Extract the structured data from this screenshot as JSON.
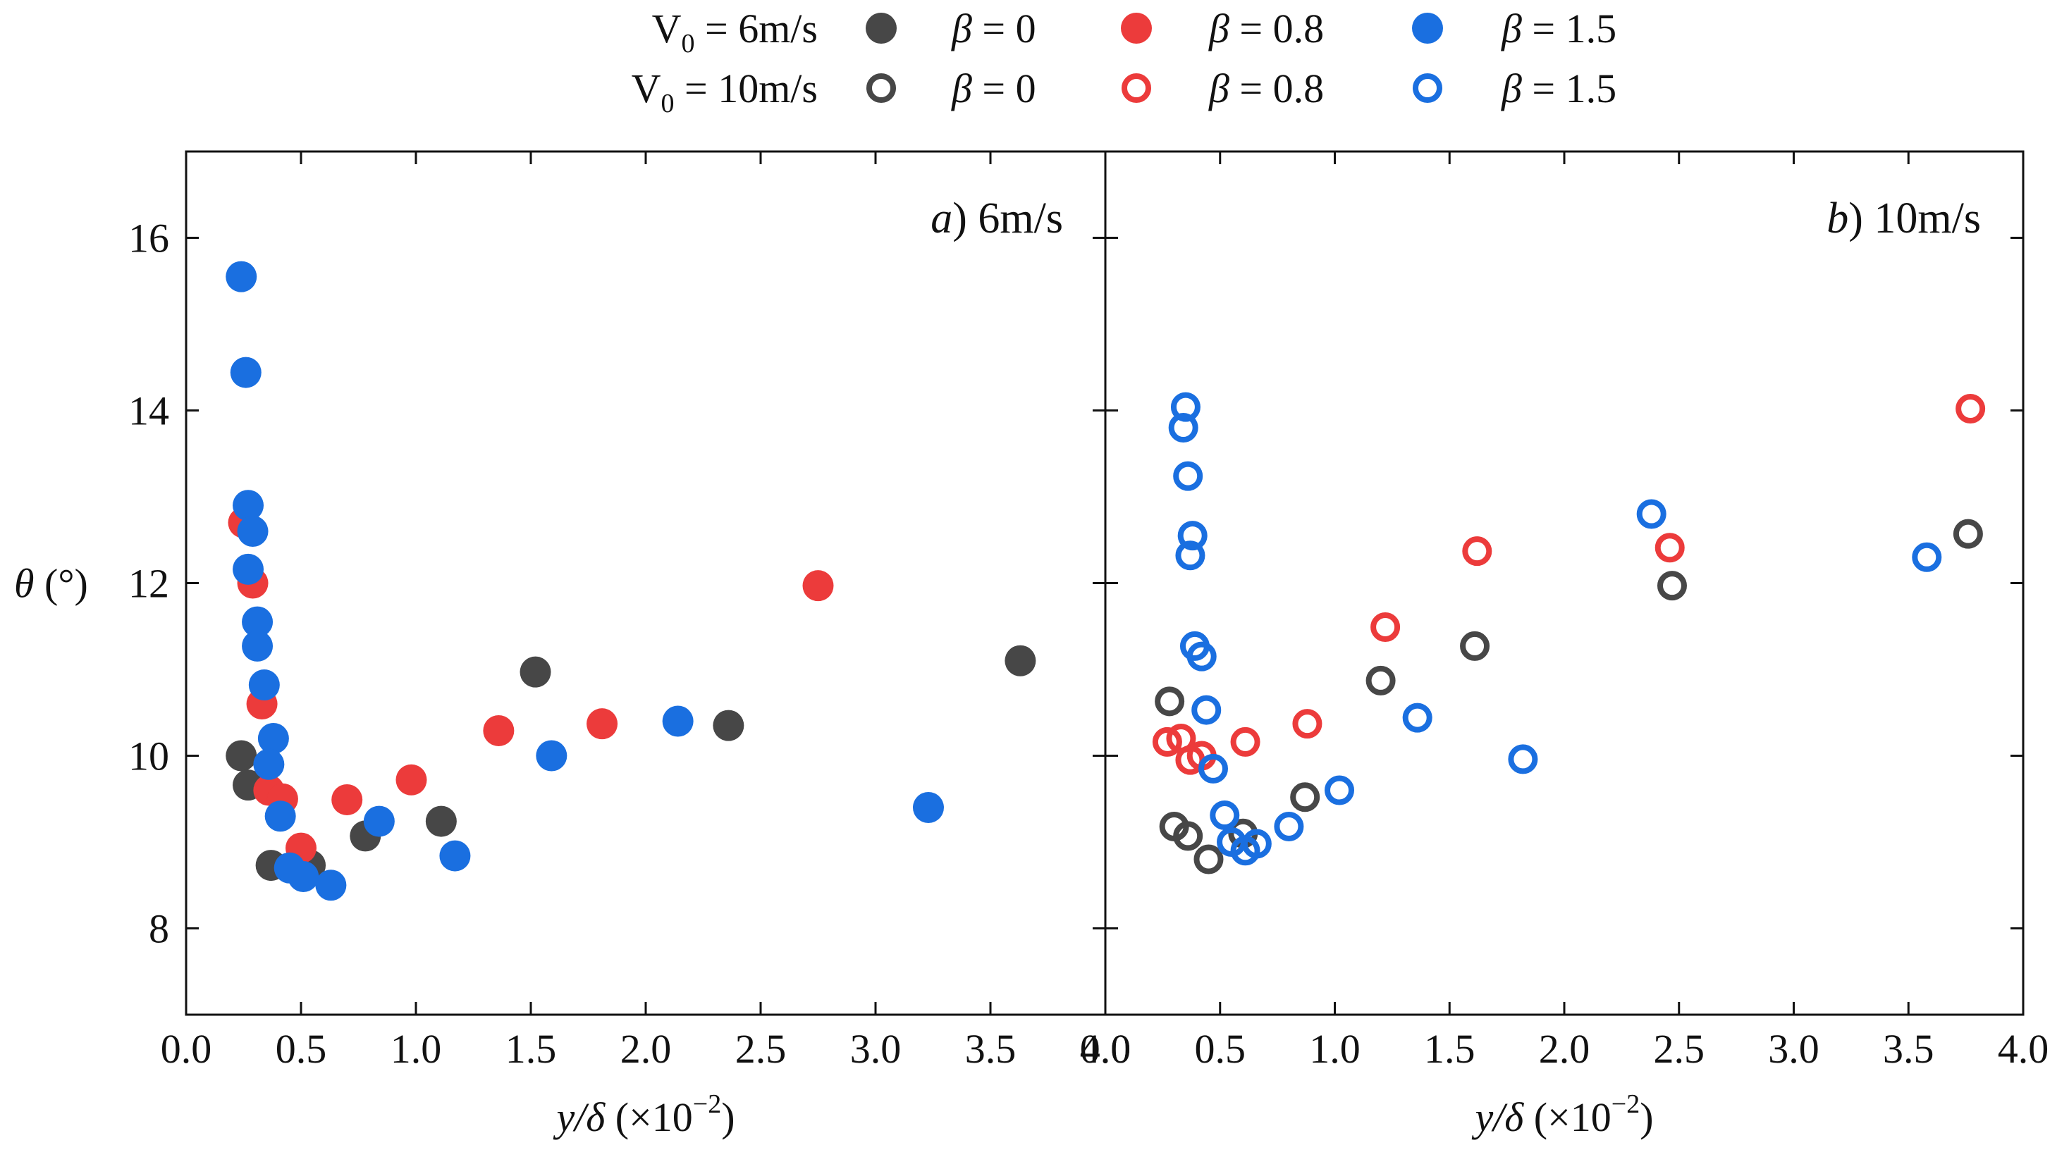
{
  "chart_data": {
    "type": "scatter",
    "colors": {
      "beta_0": "#474747",
      "beta_0.8": "#ec3b3b",
      "beta_1.5": "#1a6fe0"
    },
    "legend": {
      "placement": "top",
      "rows": [
        {
          "label": "V",
          "sub": "0",
          "suffix": " = 6m/s",
          "style": "filled"
        },
        {
          "label": "V",
          "sub": "0",
          "suffix": " = 10m/s",
          "style": "open"
        }
      ],
      "betas": [
        {
          "key": "beta_0",
          "label": "β = 0"
        },
        {
          "key": "beta_0.8",
          "label": "β = 0.8"
        },
        {
          "key": "beta_1.5",
          "label": "β = 1.5"
        }
      ]
    },
    "ylabel": "θ (°)",
    "ylim": [
      7,
      17
    ],
    "yticks": [
      8,
      10,
      12,
      14,
      16
    ],
    "xlim": [
      0,
      4
    ],
    "xticks": [
      "0.0",
      "0.5",
      "1.0",
      "1.5",
      "2.0",
      "2.5",
      "3.0",
      "3.5",
      "4.0"
    ],
    "xlabel_main": "y/δ",
    "xlabel_unit": "(×10",
    "xlabel_exp": "−2",
    "xlabel_close": ")",
    "panels": [
      {
        "title_letter": "a",
        "title_rest": ") 6m/s",
        "marker": "filled",
        "series": [
          {
            "key": "beta_0",
            "name": "β = 0",
            "points": [
              [
                0.24,
                10.0
              ],
              [
                0.27,
                9.66
              ],
              [
                0.37,
                8.73
              ],
              [
                0.54,
                8.73
              ],
              [
                0.78,
                9.07
              ],
              [
                1.11,
                9.24
              ],
              [
                1.52,
                10.97
              ],
              [
                2.36,
                10.35
              ],
              [
                3.63,
                11.1
              ]
            ]
          },
          {
            "key": "beta_0.8",
            "name": "β = 0.8",
            "points": [
              [
                0.25,
                12.7
              ],
              [
                0.29,
                12.0
              ],
              [
                0.33,
                10.6
              ],
              [
                0.36,
                9.6
              ],
              [
                0.42,
                9.5
              ],
              [
                0.5,
                8.93
              ],
              [
                0.7,
                9.49
              ],
              [
                0.98,
                9.72
              ],
              [
                1.36,
                10.29
              ],
              [
                1.81,
                10.37
              ],
              [
                2.75,
                11.97
              ]
            ]
          },
          {
            "key": "beta_1.5",
            "name": "β = 1.5",
            "points": [
              [
                0.24,
                15.55
              ],
              [
                0.26,
                14.44
              ],
              [
                0.27,
                12.9
              ],
              [
                0.29,
                12.6
              ],
              [
                0.27,
                12.16
              ],
              [
                0.31,
                11.55
              ],
              [
                0.31,
                11.27
              ],
              [
                0.34,
                10.82
              ],
              [
                0.38,
                10.2
              ],
              [
                0.36,
                9.9
              ],
              [
                0.41,
                9.3
              ],
              [
                0.45,
                8.7
              ],
              [
                0.51,
                8.6
              ],
              [
                0.63,
                8.5
              ],
              [
                0.84,
                9.24
              ],
              [
                1.17,
                8.84
              ],
              [
                1.59,
                10.0
              ],
              [
                2.14,
                10.4
              ],
              [
                3.23,
                9.4
              ]
            ]
          }
        ]
      },
      {
        "title_letter": "b",
        "title_rest": ") 10m/s",
        "marker": "open",
        "series": [
          {
            "key": "beta_0",
            "name": "β = 0",
            "points": [
              [
                0.28,
                10.63
              ],
              [
                0.3,
                9.18
              ],
              [
                0.36,
                9.07
              ],
              [
                0.45,
                8.8
              ],
              [
                0.6,
                9.1
              ],
              [
                0.87,
                9.52
              ],
              [
                1.2,
                10.87
              ],
              [
                1.61,
                11.27
              ],
              [
                2.47,
                11.97
              ],
              [
                3.76,
                12.57
              ]
            ]
          },
          {
            "key": "beta_0.8",
            "name": "β = 0.8",
            "points": [
              [
                0.27,
                10.16
              ],
              [
                0.33,
                10.2
              ],
              [
                0.37,
                9.95
              ],
              [
                0.42,
                10.0
              ],
              [
                0.61,
                10.16
              ],
              [
                0.88,
                10.37
              ],
              [
                1.22,
                11.49
              ],
              [
                1.62,
                12.37
              ],
              [
                2.46,
                12.41
              ],
              [
                3.77,
                14.02
              ]
            ]
          },
          {
            "key": "beta_1.5",
            "name": "β = 1.5",
            "points": [
              [
                0.35,
                14.04
              ],
              [
                0.34,
                13.8
              ],
              [
                0.36,
                13.24
              ],
              [
                0.38,
                12.55
              ],
              [
                0.37,
                12.32
              ],
              [
                0.39,
                11.27
              ],
              [
                0.42,
                11.15
              ],
              [
                0.44,
                10.53
              ],
              [
                0.47,
                9.85
              ],
              [
                0.52,
                9.31
              ],
              [
                0.55,
                9.0
              ],
              [
                0.61,
                8.9
              ],
              [
                0.66,
                8.98
              ],
              [
                0.8,
                9.18
              ],
              [
                1.02,
                9.6
              ],
              [
                1.36,
                10.44
              ],
              [
                1.82,
                9.96
              ],
              [
                2.38,
                12.8
              ],
              [
                3.58,
                12.3
              ]
            ]
          }
        ]
      }
    ]
  }
}
